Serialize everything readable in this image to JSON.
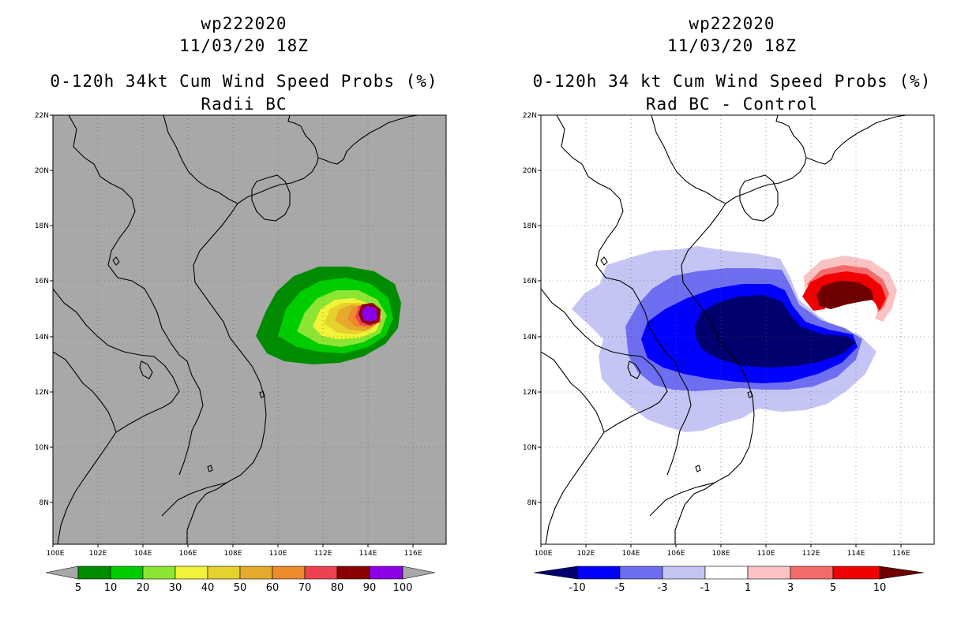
{
  "left": {
    "storm": "wp222020",
    "datetime": "11/03/20 18Z",
    "title": "0-120h 34kt Cum Wind Speed Probs (%)",
    "subtitle": "Radii BC",
    "lat_ticks": [
      "22N",
      "20N",
      "18N",
      "16N",
      "14N",
      "12N",
      "10N",
      "8N"
    ],
    "lon_ticks": [
      "100E",
      "102E",
      "104E",
      "106E",
      "108E",
      "110E",
      "112E",
      "114E",
      "116E"
    ],
    "colorbar": {
      "labels": [
        "5",
        "10",
        "20",
        "30",
        "40",
        "50",
        "60",
        "70",
        "80",
        "90",
        "100"
      ],
      "colors": [
        "#008c00",
        "#00cd00",
        "#8de533",
        "#f2f237",
        "#e5d22c",
        "#e5aa2c",
        "#ec8a2c",
        "#ef4250",
        "#8b0000",
        "#8b00e5"
      ],
      "end_color": "#a8a8a8"
    }
  },
  "right": {
    "storm": "wp222020",
    "datetime": "11/03/20 18Z",
    "title": "0-120h 34 kt Cum Wind Speed Probs (%)",
    "subtitle": "Rad BC - Control",
    "lat_ticks": [
      "22N",
      "20N",
      "18N",
      "16N",
      "14N",
      "12N",
      "10N",
      "8N"
    ],
    "lon_ticks": [
      "100E",
      "102E",
      "104E",
      "106E",
      "108E",
      "110E",
      "112E",
      "114E",
      "116E"
    ],
    "colorbar": {
      "labels": [
        "-10",
        "-5",
        "-3",
        "-1",
        "1",
        "3",
        "5",
        "10"
      ],
      "colors": [
        "#0000ff",
        "#6e6ef0",
        "#c5c5f5",
        "#ffffff",
        "#fac3c3",
        "#f56a6a",
        "#f00000"
      ],
      "end_low": "#00006e",
      "end_high": "#6e0000"
    }
  }
}
